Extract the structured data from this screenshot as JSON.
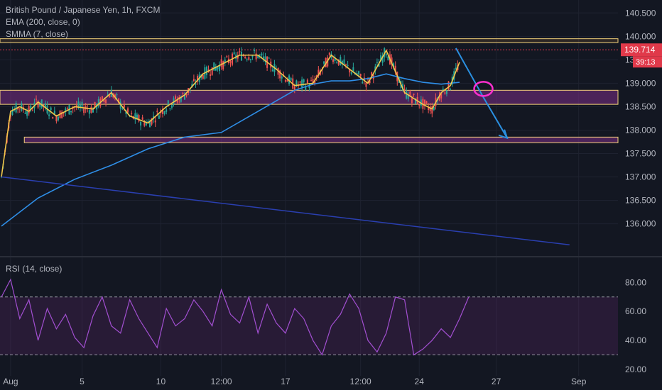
{
  "chart_data": [
    {
      "type": "line",
      "subtype": "candlestick-price-chart",
      "title": "British Pound / Japanese Yen, 1h, FXCM",
      "indicators": [
        "EMA (200, close, 0)",
        "SMMA (7, close)"
      ],
      "ylim": [
        135.6,
        140.55
      ],
      "y_ticks": [
        "140.500",
        "140.000",
        "139.500",
        "139.000",
        "138.500",
        "138.000",
        "137.500",
        "137.000",
        "136.500",
        "136.000"
      ],
      "x_ticks": [
        "Aug",
        "5",
        "10",
        "12:00",
        "17",
        "12:00",
        "24",
        "27",
        "Sep"
      ],
      "last_price": "139.714",
      "countdown": "39:13",
      "series": [
        {
          "name": "EMA (200, close, 0)",
          "color": "#2f8fe8",
          "x": [
            0,
            2,
            4,
            6,
            8,
            10,
            12,
            14,
            16,
            17,
            18,
            19,
            20,
            21,
            22,
            23,
            24,
            25
          ],
          "y": [
            135.95,
            136.55,
            136.95,
            137.25,
            137.6,
            137.85,
            137.95,
            138.4,
            138.85,
            138.98,
            139.05,
            139.05,
            139.1,
            139.2,
            139.1,
            139.02,
            138.98,
            139.02
          ]
        },
        {
          "name": "SMMA (7, close)",
          "color": "#f2c84b",
          "x": [
            0,
            0.5,
            1,
            1.5,
            2,
            3,
            4,
            5,
            6,
            7,
            8,
            9,
            10,
            11,
            12,
            13,
            14,
            15,
            16,
            17,
            18,
            19,
            20,
            21,
            22,
            23,
            23.5,
            24,
            24.5,
            25
          ],
          "y": [
            137.0,
            138.4,
            138.5,
            138.4,
            138.6,
            138.3,
            138.5,
            138.45,
            138.8,
            138.3,
            138.15,
            138.5,
            138.75,
            139.2,
            139.4,
            139.6,
            139.6,
            139.3,
            138.95,
            139.0,
            139.6,
            139.3,
            139.0,
            139.7,
            138.8,
            138.55,
            138.45,
            138.8,
            138.95,
            139.45
          ]
        },
        {
          "name": "Long-term trend line",
          "color": "#2a3fb0",
          "x": [
            0,
            31
          ],
          "y": [
            137.0,
            135.55
          ]
        }
      ],
      "zones": [
        {
          "name": "resistance",
          "from": 139.87,
          "to": 139.95,
          "color": "#f0a040"
        },
        {
          "name": "support-box",
          "from": 138.55,
          "to": 138.85,
          "color": "#7b2d87"
        },
        {
          "name": "target-box",
          "from": 137.73,
          "to": 137.85,
          "color": "#7b2d87"
        }
      ],
      "projection": {
        "x": [
          24.8,
          26.3,
          27.6
        ],
        "y": [
          139.75,
          138.7,
          137.83
        ],
        "color": "#2a8fe0"
      }
    },
    {
      "type": "line",
      "title": "RSI (14, close)",
      "ylim": [
        17.5,
        87.5
      ],
      "y_ticks": [
        "80.00",
        "60.00",
        "40.00",
        "20.00"
      ],
      "band": [
        30,
        70
      ],
      "series": [
        {
          "name": "RSI",
          "color": "#a24fd1",
          "x": [
            0,
            0.5,
            1,
            1.5,
            2,
            2.5,
            3,
            3.5,
            4,
            4.5,
            5,
            5.5,
            6,
            6.5,
            7,
            7.5,
            8,
            8.5,
            9,
            9.5,
            10,
            10.5,
            11,
            11.5,
            12,
            12.5,
            13,
            13.5,
            14,
            14.5,
            15,
            15.5,
            16,
            16.5,
            17,
            17.5,
            18,
            18.5,
            19,
            19.5,
            20,
            20.5,
            21,
            21.5,
            22,
            22.5,
            23,
            23.5,
            24,
            24.5,
            25,
            25.5
          ],
          "y": [
            70,
            82,
            55,
            68,
            40,
            62,
            48,
            58,
            42,
            35,
            57,
            70,
            50,
            45,
            68,
            55,
            45,
            35,
            62,
            50,
            55,
            68,
            60,
            50,
            75,
            58,
            52,
            70,
            45,
            65,
            52,
            45,
            62,
            55,
            40,
            30,
            50,
            58,
            72,
            62,
            40,
            32,
            45,
            70,
            68,
            30,
            34,
            40,
            48,
            42,
            55,
            70
          ]
        }
      ]
    }
  ]
}
